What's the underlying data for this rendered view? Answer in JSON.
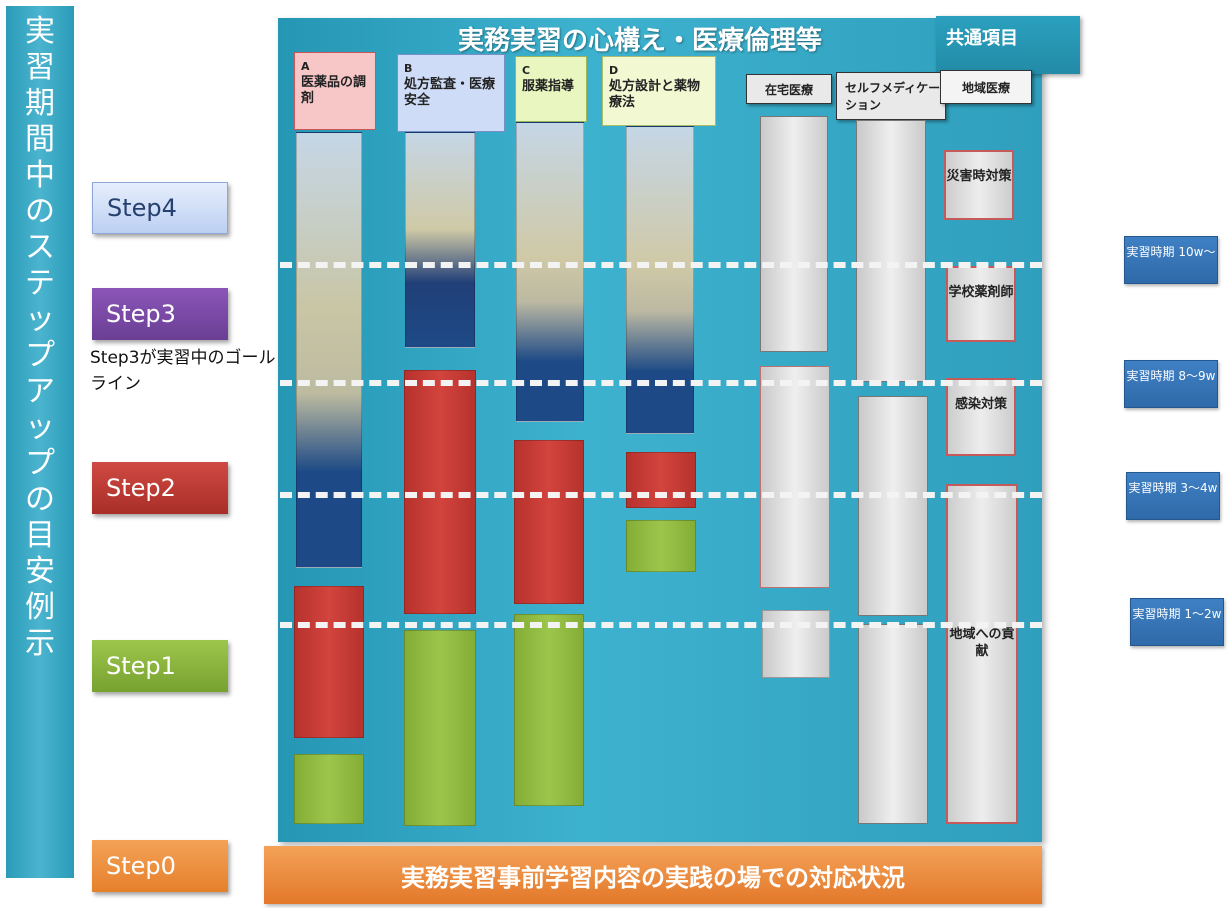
{
  "vertical_banner": "実習期間中のステップアップの目安　例示",
  "steps": {
    "step4": "Step4",
    "step3": "Step3",
    "step2": "Step2",
    "step1": "Step1",
    "step0": "Step0"
  },
  "goal_note": "Step3が実習中のゴールライン",
  "panel_title": "実務実習の心構え・医療倫理等",
  "common_items": "共通項目",
  "columns": {
    "a": {
      "letter": "A",
      "label": "医薬品の調剤"
    },
    "b": {
      "letter": "B",
      "label": "処方監査・医療安全"
    },
    "c": {
      "letter": "C",
      "label": "服薬指導"
    },
    "d": {
      "letter": "D",
      "label": "処方設計と薬物療法"
    },
    "e": {
      "label": "在宅医療"
    },
    "f": {
      "label": "セルフメディケーション"
    },
    "g": {
      "label": "地域医療"
    }
  },
  "community_boxes": [
    "災害時対策",
    "学校薬剤師",
    "感染対策",
    "地域への貢献"
  ],
  "durations": [
    "実習時期 10w～",
    "実習時期 8～9w",
    "実習時期 3～4w",
    "実習時期 1～2w"
  ],
  "bottom_bar": "実務実習事前学習内容の実践の場での対応状況"
}
